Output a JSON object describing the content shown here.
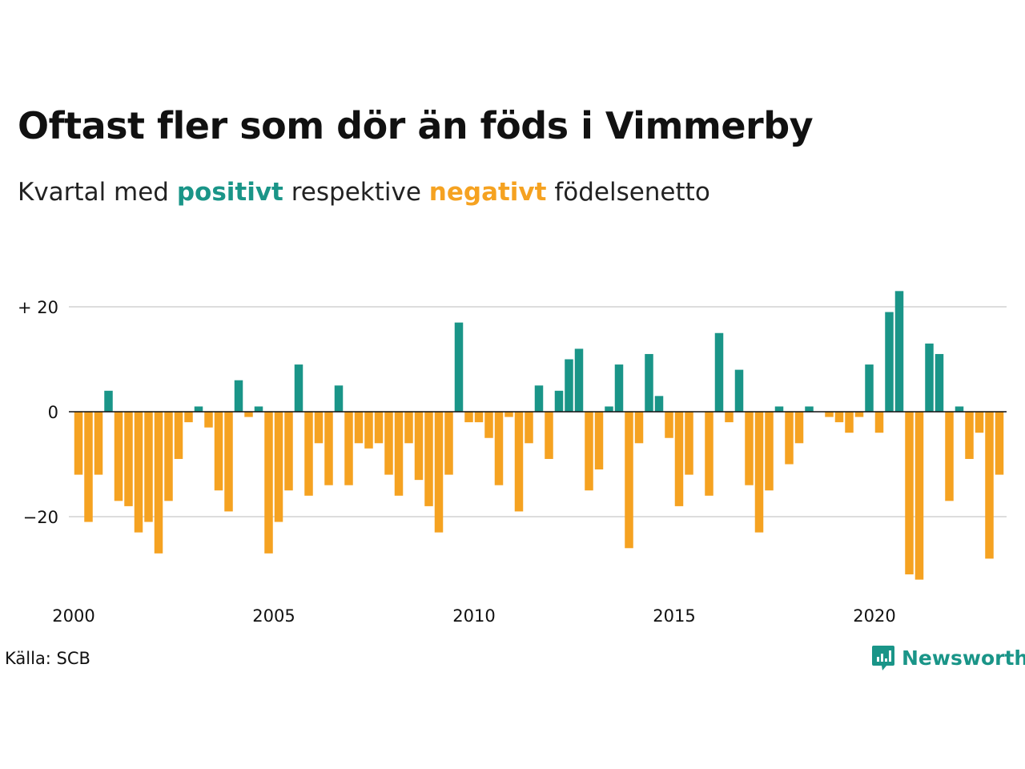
{
  "title": "Oftast fler som dör än föds i Vimmerby",
  "subtitle": {
    "prefix": "Kvartal med ",
    "positive_word": "positivt",
    "middle": " respektive ",
    "negative_word": "negativt",
    "suffix": " födelsenetto"
  },
  "colors": {
    "positive": "#1a9588",
    "negative": "#f5a221",
    "grid": "#dddddd",
    "zero_line": "#111111"
  },
  "source": "Källa: SCB",
  "logo": {
    "text": "Newsworthy",
    "icon": "newsworthy-chart-bubble-icon"
  },
  "chart_data": {
    "type": "bar",
    "y_ticks": [
      {
        "value": 20,
        "label": "+ 20"
      },
      {
        "value": 0,
        "label": "0"
      },
      {
        "value": -20,
        "label": "−20"
      }
    ],
    "x_ticks": [
      "2000",
      "2005",
      "2010",
      "2015",
      "2020"
    ],
    "ylim": [
      -35,
      25
    ],
    "start_year": 2000,
    "values": [
      -12,
      -21,
      -12,
      4,
      -17,
      -18,
      -23,
      -21,
      -27,
      -17,
      -9,
      -2,
      1,
      -3,
      -15,
      -19,
      6,
      -1,
      1,
      -27,
      -21,
      -15,
      9,
      -16,
      -6,
      -14,
      5,
      -14,
      -6,
      -7,
      -6,
      -12,
      -16,
      -6,
      -13,
      -18,
      -23,
      -12,
      17,
      -2,
      -2,
      -5,
      -14,
      -1,
      -19,
      -6,
      5,
      -9,
      4,
      10,
      12,
      -15,
      -11,
      1,
      9,
      -26,
      -6,
      11,
      3,
      -5,
      -18,
      -12,
      0,
      -16,
      15,
      -2,
      8,
      -14,
      -23,
      -15,
      1,
      -10,
      -6,
      1,
      0,
      -1,
      -2,
      -4,
      -1,
      9,
      -4,
      19,
      23,
      -31,
      -32,
      13,
      11,
      -17,
      1,
      -9,
      -4,
      -28,
      -12
    ]
  }
}
